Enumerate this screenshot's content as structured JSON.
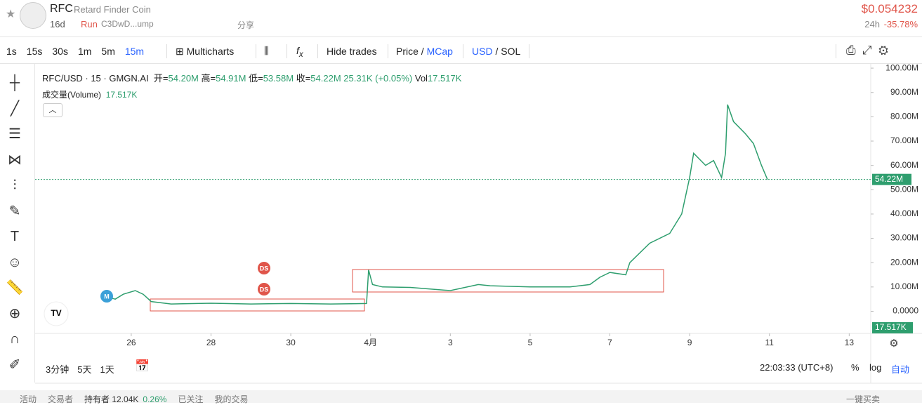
{
  "header": {
    "symbol": "RFC",
    "name": "Retard Finder Coin",
    "age": "16d",
    "tag": "Run",
    "address": "C3DwD...ump",
    "share": "分享",
    "price": "$0.054232",
    "change_label": "24h",
    "change": "-35.78%"
  },
  "toolbar": {
    "intervals": [
      "1s",
      "15s",
      "30s",
      "1m",
      "5m",
      "15m"
    ],
    "multicharts": "Multicharts",
    "hide_trades": "Hide trades",
    "price": "Price",
    "mcap": "MCap",
    "usd": "USD",
    "sol": "SOL"
  },
  "legend": {
    "symbol": "RFC/USD · 15 · GMGN.AI",
    "open_label": "开=",
    "open": "54.20M",
    "high_label": "高=",
    "high": "54.91M",
    "low_label": "低=",
    "low": "53.58M",
    "close_label": "收=",
    "close": "54.22M",
    "change": "25.31K (+0.05%)",
    "vol_label": "Vol",
    "vol": "17.517K",
    "volume_title": "成交量(Volume)",
    "volume_value": "17.517K"
  },
  "markers": [
    "M",
    "DS",
    "DS"
  ],
  "chart_data": {
    "type": "line",
    "color": "#2e9e6e",
    "x": [
      -0.63,
      -0.4,
      -0.2,
      0.1,
      0.3,
      0.5,
      1,
      2,
      3,
      4,
      5,
      5.9,
      5.95,
      6.05,
      6.3,
      7,
      8,
      8.7,
      9,
      10,
      11,
      11.5,
      11.75,
      12,
      12.4,
      12.5,
      13,
      13.5,
      13.8,
      14,
      14.1,
      14.4,
      14.6,
      14.8,
      14.9,
      14.95,
      15.1,
      15.4,
      15.6,
      15.8,
      15.95
    ],
    "values": [
      6,
      5,
      7,
      8.5,
      7,
      4,
      3,
      3.3,
      3,
      3.2,
      3,
      3.2,
      17,
      11,
      10,
      9.8,
      8.5,
      11,
      10.5,
      10,
      10,
      11,
      14,
      16,
      15,
      20,
      28,
      32,
      40,
      55,
      65,
      60,
      62,
      55,
      65,
      85,
      78,
      73,
      69,
      60,
      54.22
    ],
    "xlim": [
      -2.41,
      18.54
    ],
    "xticks": [
      {
        "value": 0,
        "label": "26"
      },
      {
        "value": 2,
        "label": "28"
      },
      {
        "value": 4,
        "label": "30"
      },
      {
        "value": 6,
        "label": "4月"
      },
      {
        "value": 8,
        "label": "3"
      },
      {
        "value": 10,
        "label": "5"
      },
      {
        "value": 12,
        "label": "7"
      },
      {
        "value": 14,
        "label": "9"
      },
      {
        "value": 16,
        "label": "11"
      },
      {
        "value": 18,
        "label": "13"
      }
    ],
    "ylim": [
      -9.1,
      100.6
    ],
    "yticks": [
      {
        "value": 0,
        "label": "0.0000"
      },
      {
        "value": 10,
        "label": "10.00M"
      },
      {
        "value": 20,
        "label": "20.00M"
      },
      {
        "value": 30,
        "label": "30.00M"
      },
      {
        "value": 40,
        "label": "40.00M"
      },
      {
        "value": 50,
        "label": "50.00M"
      },
      {
        "value": 60,
        "label": "60.00M"
      },
      {
        "value": 70,
        "label": "70.00M"
      },
      {
        "value": 80,
        "label": "80.00M"
      },
      {
        "value": 90,
        "label": "90.00M"
      },
      {
        "value": 100,
        "label": "100.00M"
      }
    ],
    "last_price": {
      "value": 54.22,
      "label": "54.22M"
    },
    "volume_label": "17.517K"
  },
  "footer": {
    "ranges": [
      "3分钟",
      "5天",
      "1天"
    ],
    "time": "22:03:33 (UTC+8)",
    "pct": "%",
    "log": "log",
    "auto": "自动"
  },
  "bottom": {
    "tabs": [
      "活动",
      "交易者",
      "持有者 12.04K",
      "0.26%",
      "已关注",
      "我的交易"
    ],
    "buy": "一键买卖"
  }
}
